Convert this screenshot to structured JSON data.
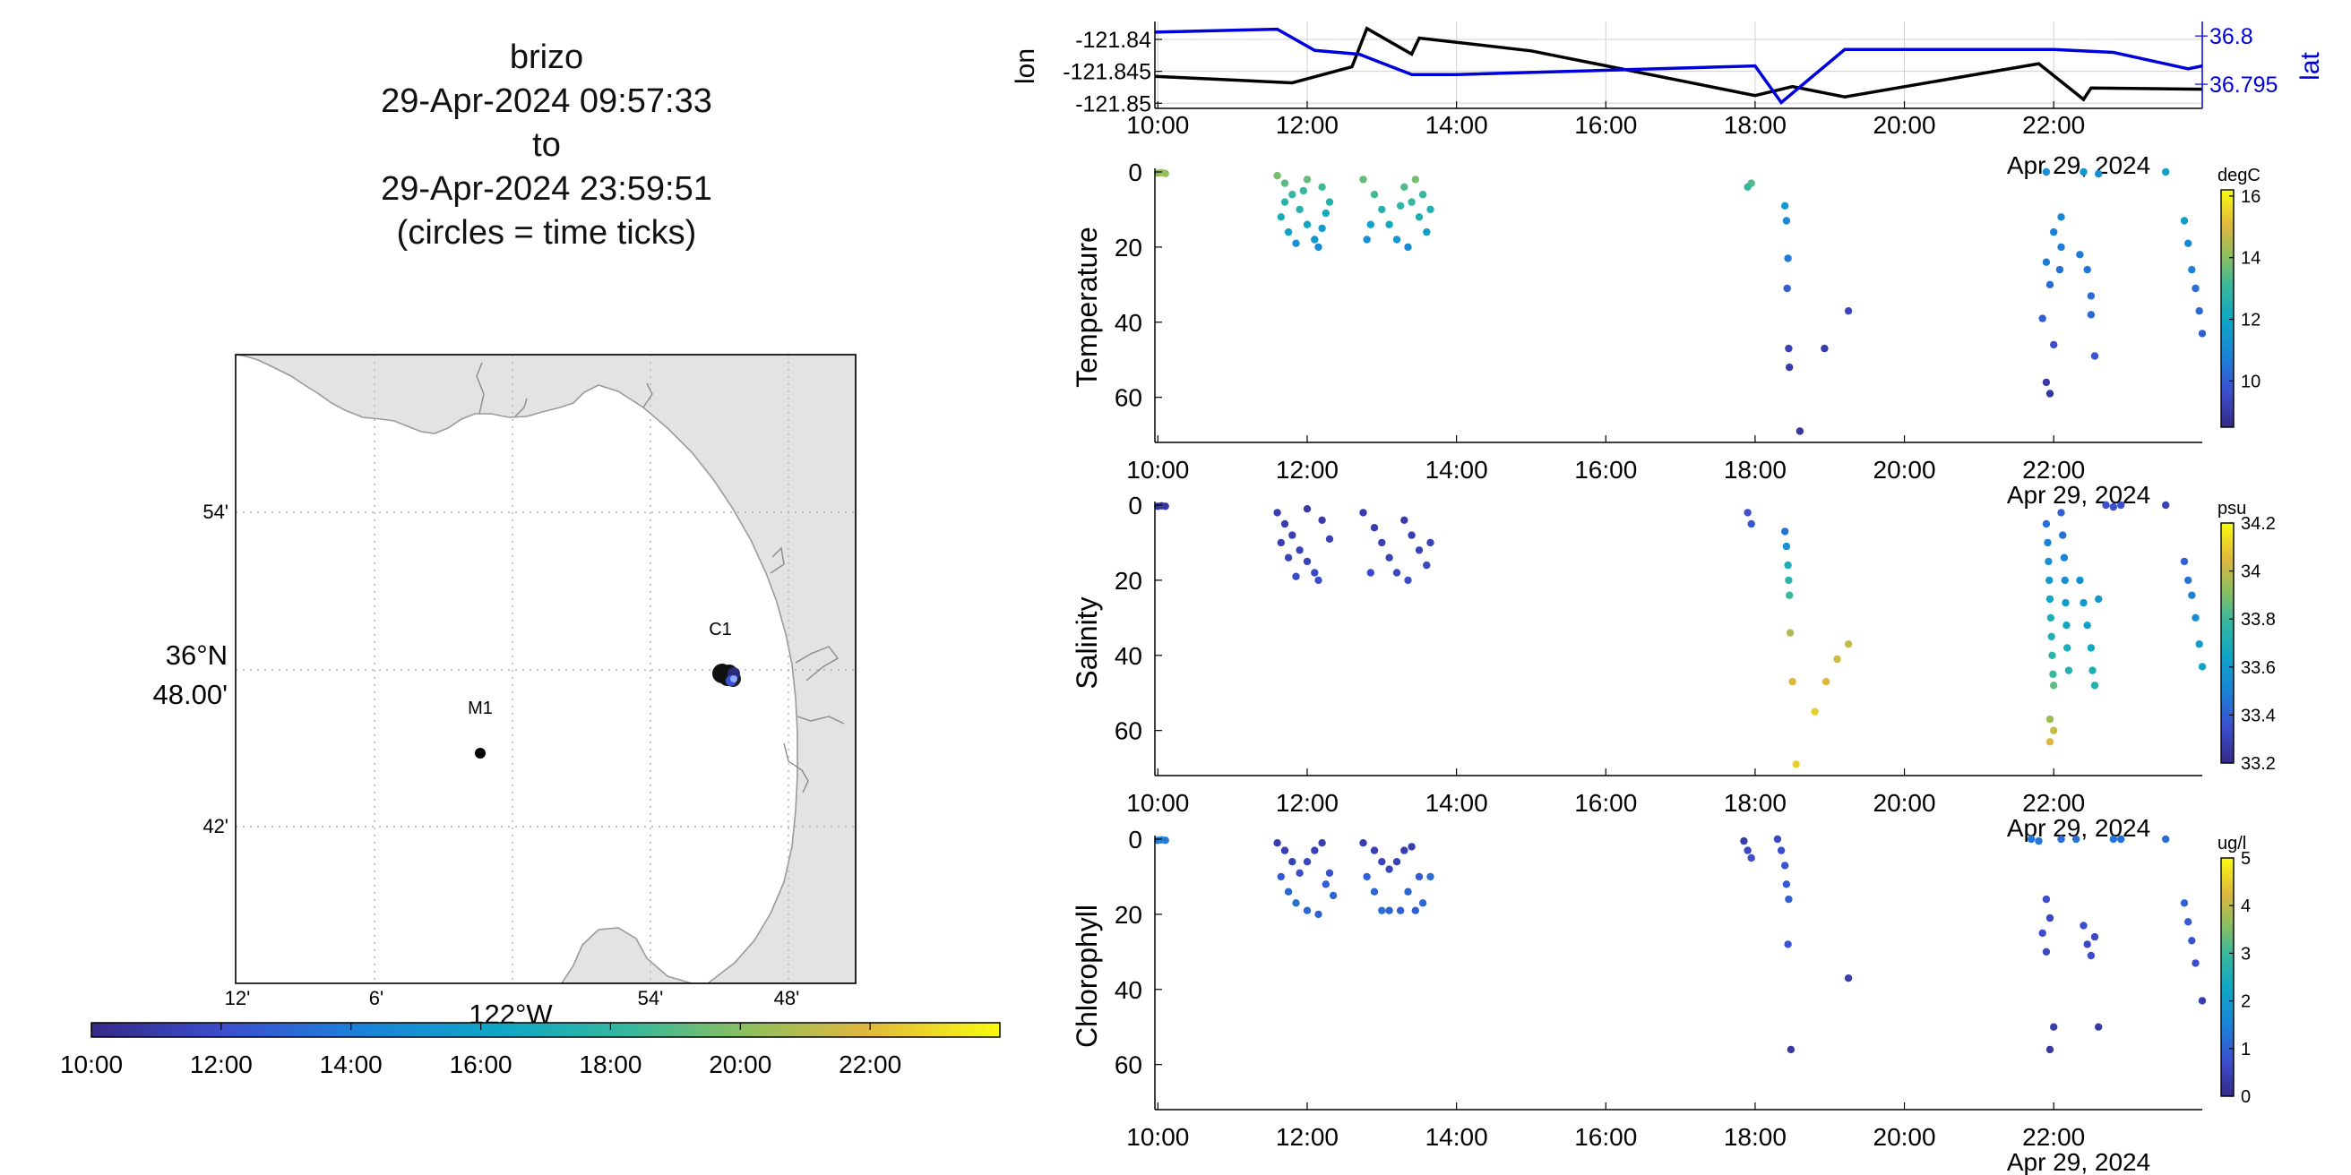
{
  "title": {
    "vehicle": "brizo",
    "start": "29-Apr-2024 09:57:33",
    "to": "to",
    "end": "29-Apr-2024 23:59:51",
    "note": "(circles = time ticks)"
  },
  "map": {
    "lon_ticks": [
      "12'",
      "6'",
      "54'",
      "48'"
    ],
    "lon_degree_label": "122°W",
    "lat_ticks": [
      "54'",
      "42'"
    ],
    "lat_degree_label_1": "36°N",
    "lat_degree_label_2": "48.00'",
    "stations": [
      {
        "name": "M1"
      },
      {
        "name": "C1"
      }
    ],
    "colors": {
      "land": "#e3e3e3",
      "coast": "#9a9a9a",
      "grid": "#b0b0b0",
      "track": "#222222"
    }
  },
  "time_colorbar": {
    "labels": [
      "10:00",
      "12:00",
      "14:00",
      "16:00",
      "18:00",
      "20:00",
      "22:00"
    ]
  },
  "chart_data": [
    {
      "type": "line",
      "name": "position",
      "x_ticks": [
        "10:00",
        "12:00",
        "14:00",
        "16:00",
        "18:00",
        "20:00",
        "22:00"
      ],
      "date_label": "Apr 29, 2024",
      "xlim": [
        9.96,
        23.99
      ],
      "left_axis": {
        "label": "lon",
        "ticks": [
          "-121.84",
          "-121.845",
          "-121.85"
        ],
        "ylim": [
          -121.8508,
          -121.8372
        ],
        "color": "#000000"
      },
      "right_axis": {
        "label": "lat",
        "ticks": [
          "36.8",
          "36.795"
        ],
        "ylim": [
          36.7925,
          36.8015
        ],
        "color": "#0000dd"
      },
      "series": [
        {
          "name": "lon",
          "axis": "left",
          "color": "#000000",
          "x": [
            9.96,
            11.8,
            12.6,
            12.8,
            13.4,
            13.5,
            15.0,
            18.0,
            18.5,
            19.2,
            21.8,
            22.4,
            22.5,
            23.99
          ],
          "y": [
            -121.8458,
            -121.8468,
            -121.8443,
            -121.8383,
            -121.8423,
            -121.8398,
            -121.8418,
            -121.8488,
            -121.8474,
            -121.849,
            -121.8438,
            -121.8494,
            -121.8476,
            -121.8478
          ]
        },
        {
          "name": "lat",
          "axis": "right",
          "color": "#0000dd",
          "x": [
            9.96,
            11.6,
            12.1,
            12.7,
            13.4,
            14.0,
            18.0,
            18.35,
            19.2,
            22.0,
            22.8,
            23.8,
            23.99
          ],
          "y": [
            36.8004,
            36.8007,
            36.7985,
            36.7981,
            36.796,
            36.796,
            36.7969,
            36.7931,
            36.7986,
            36.7986,
            36.7983,
            36.7966,
            36.7969
          ]
        }
      ]
    },
    {
      "type": "scatter",
      "name": "temperature",
      "ylabel": "Temperature",
      "x_ticks": [
        "10:00",
        "12:00",
        "14:00",
        "16:00",
        "18:00",
        "20:00",
        "22:00"
      ],
      "y_ticks": [
        "0",
        "20",
        "40",
        "60"
      ],
      "date_label": "Apr 29, 2024",
      "xlim": [
        9.96,
        23.99
      ],
      "ylim": [
        0,
        72
      ],
      "colorbar": {
        "unit": "degC",
        "ticks": [
          "16",
          "14",
          "12",
          "10"
        ],
        "clim": [
          8.5,
          16.2
        ]
      },
      "points": [
        [
          10.0,
          0.3,
          14.0
        ],
        [
          10.05,
          0.2,
          14.2
        ],
        [
          10.1,
          0.4,
          14.1
        ],
        [
          11.6,
          1,
          13.8
        ],
        [
          11.7,
          3,
          13.5
        ],
        [
          11.8,
          6,
          13.0
        ],
        [
          11.9,
          10,
          12.6
        ],
        [
          12.0,
          14,
          12.0
        ],
        [
          12.1,
          18,
          11.4
        ],
        [
          11.65,
          12,
          12.4
        ],
        [
          11.75,
          16,
          11.8
        ],
        [
          11.85,
          19,
          11.2
        ],
        [
          12.2,
          4,
          13.2
        ],
        [
          12.3,
          8,
          12.6
        ],
        [
          11.7,
          8,
          12.8
        ],
        [
          12.0,
          2,
          13.6
        ],
        [
          12.2,
          15,
          11.6
        ],
        [
          12.15,
          20,
          11.0
        ],
        [
          11.95,
          5,
          13.0
        ],
        [
          12.25,
          11,
          12.2
        ],
        [
          12.75,
          2,
          13.6
        ],
        [
          12.9,
          6,
          13.2
        ],
        [
          13.0,
          10,
          12.6
        ],
        [
          13.1,
          14,
          12.0
        ],
        [
          13.2,
          18,
          11.4
        ],
        [
          13.3,
          4,
          13.4
        ],
        [
          13.4,
          8,
          13.0
        ],
        [
          13.5,
          12,
          12.4
        ],
        [
          13.6,
          16,
          11.6
        ],
        [
          12.8,
          18,
          11.2
        ],
        [
          12.85,
          14,
          11.8
        ],
        [
          13.35,
          20,
          11.0
        ],
        [
          13.45,
          2,
          13.8
        ],
        [
          13.25,
          9,
          12.8
        ],
        [
          13.55,
          6,
          13.1
        ],
        [
          13.65,
          10,
          12.5
        ],
        [
          17.95,
          3,
          13.4
        ],
        [
          17.9,
          4,
          13.0
        ],
        [
          18.4,
          9,
          11.5
        ],
        [
          18.42,
          13,
          11.0
        ],
        [
          18.44,
          23,
          10.6
        ],
        [
          18.43,
          31,
          10.0
        ],
        [
          18.45,
          47,
          9.2
        ],
        [
          18.46,
          52,
          9.0
        ],
        [
          18.6,
          69,
          8.8
        ],
        [
          18.93,
          47,
          9.1
        ],
        [
          19.25,
          37,
          9.4
        ],
        [
          21.9,
          0,
          11.2
        ],
        [
          22.0,
          16,
          10.8
        ],
        [
          21.9,
          24,
          10.6
        ],
        [
          21.95,
          30,
          10.3
        ],
        [
          21.85,
          39,
          10.0
        ],
        [
          22.0,
          46,
          9.6
        ],
        [
          21.9,
          56,
          9.0
        ],
        [
          21.95,
          59,
          8.9
        ],
        [
          22.1,
          12,
          11.0
        ],
        [
          22.1,
          20,
          10.6
        ],
        [
          22.08,
          26,
          10.4
        ],
        [
          22.35,
          22,
          10.6
        ],
        [
          22.45,
          26,
          10.5
        ],
        [
          22.5,
          38,
          10.2
        ],
        [
          22.55,
          49,
          9.8
        ],
        [
          22.5,
          33,
          10.3
        ],
        [
          22.6,
          0.5,
          11.2
        ],
        [
          22.4,
          0,
          11.4
        ],
        [
          23.5,
          0,
          11.8
        ],
        [
          23.75,
          13,
          11.6
        ],
        [
          23.8,
          19,
          11.0
        ],
        [
          23.85,
          26,
          10.8
        ],
        [
          23.9,
          31,
          10.4
        ],
        [
          23.95,
          37,
          10.2
        ],
        [
          23.99,
          43,
          10.0
        ]
      ]
    },
    {
      "type": "scatter",
      "name": "salinity",
      "ylabel": "Salinity",
      "x_ticks": [
        "10:00",
        "12:00",
        "14:00",
        "16:00",
        "18:00",
        "20:00",
        "22:00"
      ],
      "y_ticks": [
        "0",
        "20",
        "40",
        "60"
      ],
      "date_label": "Apr 29, 2024",
      "xlim": [
        9.96,
        23.99
      ],
      "ylim": [
        0,
        72
      ],
      "colorbar": {
        "unit": "psu",
        "ticks": [
          "34.2",
          "34",
          "33.8",
          "33.6",
          "33.4",
          "33.2"
        ],
        "clim": [
          33.2,
          34.2
        ]
      },
      "points": [
        [
          10.0,
          0.3,
          33.25
        ],
        [
          10.05,
          0.2,
          33.25
        ],
        [
          10.1,
          0.3,
          33.25
        ],
        [
          11.6,
          2,
          33.28
        ],
        [
          11.7,
          5,
          33.28
        ],
        [
          11.8,
          8,
          33.28
        ],
        [
          11.9,
          12,
          33.3
        ],
        [
          12.0,
          15,
          33.3
        ],
        [
          12.1,
          18,
          33.32
        ],
        [
          11.65,
          10,
          33.28
        ],
        [
          11.75,
          14,
          33.3
        ],
        [
          11.85,
          19,
          33.33
        ],
        [
          12.2,
          4,
          33.27
        ],
        [
          12.3,
          9,
          33.29
        ],
        [
          12.0,
          1,
          33.27
        ],
        [
          12.15,
          20,
          33.34
        ],
        [
          12.75,
          2,
          33.27
        ],
        [
          12.9,
          6,
          33.28
        ],
        [
          13.0,
          10,
          33.29
        ],
        [
          13.1,
          14,
          33.3
        ],
        [
          13.2,
          18,
          33.32
        ],
        [
          13.3,
          4,
          33.27
        ],
        [
          13.4,
          8,
          33.28
        ],
        [
          13.5,
          12,
          33.3
        ],
        [
          13.6,
          16,
          33.32
        ],
        [
          12.85,
          18,
          33.33
        ],
        [
          13.35,
          20,
          33.34
        ],
        [
          13.65,
          10,
          33.3
        ],
        [
          17.9,
          2,
          33.35
        ],
        [
          17.95,
          5,
          33.38
        ],
        [
          18.4,
          7,
          33.45
        ],
        [
          18.42,
          11,
          33.55
        ],
        [
          18.44,
          16,
          33.7
        ],
        [
          18.45,
          20,
          33.75
        ],
        [
          18.46,
          24,
          33.8
        ],
        [
          18.47,
          34,
          33.98
        ],
        [
          18.5,
          47,
          34.05
        ],
        [
          18.55,
          69,
          34.1
        ],
        [
          18.8,
          55,
          34.1
        ],
        [
          18.95,
          47,
          34.05
        ],
        [
          19.1,
          41,
          34.02
        ],
        [
          19.25,
          37,
          34.0
        ],
        [
          21.9,
          5,
          33.45
        ],
        [
          21.92,
          10,
          33.5
        ],
        [
          21.93,
          15,
          33.55
        ],
        [
          21.94,
          20,
          33.6
        ],
        [
          21.95,
          25,
          33.65
        ],
        [
          21.96,
          30,
          33.7
        ],
        [
          21.97,
          35,
          33.72
        ],
        [
          21.98,
          40,
          33.75
        ],
        [
          21.99,
          45,
          33.8
        ],
        [
          22.0,
          48,
          33.85
        ],
        [
          22.0,
          60,
          34.0
        ],
        [
          21.95,
          63,
          34.05
        ],
        [
          21.95,
          57,
          33.95
        ],
        [
          22.1,
          2,
          33.4
        ],
        [
          22.12,
          8,
          33.45
        ],
        [
          22.14,
          14,
          33.5
        ],
        [
          22.15,
          20,
          33.55
        ],
        [
          22.16,
          26,
          33.6
        ],
        [
          22.17,
          32,
          33.65
        ],
        [
          22.18,
          38,
          33.7
        ],
        [
          22.2,
          44,
          33.72
        ],
        [
          22.35,
          20,
          33.55
        ],
        [
          22.4,
          26,
          33.58
        ],
        [
          22.45,
          32,
          33.62
        ],
        [
          22.5,
          38,
          33.66
        ],
        [
          22.52,
          44,
          33.7
        ],
        [
          22.55,
          48,
          33.72
        ],
        [
          22.6,
          25,
          33.58
        ],
        [
          22.7,
          0,
          33.35
        ],
        [
          22.8,
          0.5,
          33.35
        ],
        [
          22.9,
          0,
          33.35
        ],
        [
          23.5,
          0,
          33.3
        ],
        [
          23.75,
          15,
          33.4
        ],
        [
          23.8,
          20,
          33.45
        ],
        [
          23.85,
          24,
          33.5
        ],
        [
          23.9,
          30,
          33.55
        ],
        [
          23.95,
          37,
          33.6
        ],
        [
          23.99,
          43,
          33.65
        ]
      ]
    },
    {
      "type": "scatter",
      "name": "chlorophyll",
      "ylabel": "Chlorophyll",
      "x_ticks": [
        "10:00",
        "12:00",
        "14:00",
        "16:00",
        "18:00",
        "20:00",
        "22:00"
      ],
      "y_ticks": [
        "0",
        "20",
        "40",
        "60"
      ],
      "date_label": "Apr 29, 2024",
      "xlim": [
        9.96,
        23.99
      ],
      "ylim": [
        0,
        72
      ],
      "colorbar": {
        "unit": "ug/l",
        "ticks": [
          "5",
          "4",
          "3",
          "2",
          "1",
          "0"
        ],
        "clim": [
          0,
          5
        ]
      },
      "points": [
        [
          10.0,
          0.3,
          1.4
        ],
        [
          10.05,
          0.2,
          1.5
        ],
        [
          10.1,
          0.3,
          1.4
        ],
        [
          11.6,
          1,
          0.4
        ],
        [
          11.7,
          3,
          0.4
        ],
        [
          11.8,
          6,
          0.5
        ],
        [
          11.9,
          9,
          0.7
        ],
        [
          12.0,
          6,
          0.6
        ],
        [
          12.1,
          3,
          0.5
        ],
        [
          12.2,
          1,
          0.4
        ],
        [
          12.3,
          9,
          0.8
        ],
        [
          11.65,
          10,
          0.9
        ],
        [
          11.75,
          14,
          1.1
        ],
        [
          11.85,
          17,
          1.2
        ],
        [
          12.0,
          19,
          1.1
        ],
        [
          12.15,
          20,
          1.0
        ],
        [
          12.25,
          12,
          1.0
        ],
        [
          12.35,
          15,
          1.1
        ],
        [
          12.75,
          1,
          0.4
        ],
        [
          12.9,
          3,
          0.4
        ],
        [
          13.0,
          6,
          0.5
        ],
        [
          13.1,
          8,
          0.6
        ],
        [
          13.2,
          6,
          0.5
        ],
        [
          13.3,
          3,
          0.4
        ],
        [
          13.4,
          2,
          0.4
        ],
        [
          13.5,
          10,
          0.9
        ],
        [
          12.8,
          10,
          1.0
        ],
        [
          12.9,
          14,
          1.1
        ],
        [
          13.0,
          19,
          1.2
        ],
        [
          13.1,
          19,
          1.1
        ],
        [
          13.25,
          19,
          1.0
        ],
        [
          13.35,
          14,
          1.1
        ],
        [
          13.45,
          19,
          1.0
        ],
        [
          13.55,
          17,
          1.1
        ],
        [
          13.65,
          10,
          1.2
        ],
        [
          17.85,
          0.5,
          0.4
        ],
        [
          17.9,
          3,
          0.6
        ],
        [
          17.95,
          5,
          0.7
        ],
        [
          18.3,
          0,
          0.6
        ],
        [
          18.35,
          3,
          0.7
        ],
        [
          18.4,
          7,
          0.8
        ],
        [
          18.42,
          12,
          0.9
        ],
        [
          18.45,
          16,
          1.0
        ],
        [
          18.44,
          28,
          0.8
        ],
        [
          18.48,
          56,
          0.3
        ],
        [
          19.25,
          37,
          0.4
        ],
        [
          21.7,
          0,
          1.3
        ],
        [
          21.8,
          0.5,
          1.3
        ],
        [
          21.9,
          16,
          0.7
        ],
        [
          21.95,
          21,
          0.6
        ],
        [
          21.85,
          25,
          0.7
        ],
        [
          21.9,
          30,
          0.6
        ],
        [
          22.0,
          50,
          0.4
        ],
        [
          21.95,
          56,
          0.3
        ],
        [
          22.1,
          0,
          1.2
        ],
        [
          22.3,
          0,
          1.2
        ],
        [
          22.4,
          23,
          0.7
        ],
        [
          22.45,
          28,
          0.6
        ],
        [
          22.5,
          31,
          0.7
        ],
        [
          22.55,
          26,
          0.6
        ],
        [
          22.6,
          50,
          0.3
        ],
        [
          22.8,
          0,
          1.3
        ],
        [
          22.9,
          0,
          1.2
        ],
        [
          23.5,
          0,
          1.2
        ],
        [
          23.75,
          17,
          1.0
        ],
        [
          23.8,
          22,
          0.9
        ],
        [
          23.85,
          27,
          0.8
        ],
        [
          23.9,
          33,
          0.7
        ],
        [
          23.99,
          43,
          0.4
        ]
      ]
    }
  ]
}
